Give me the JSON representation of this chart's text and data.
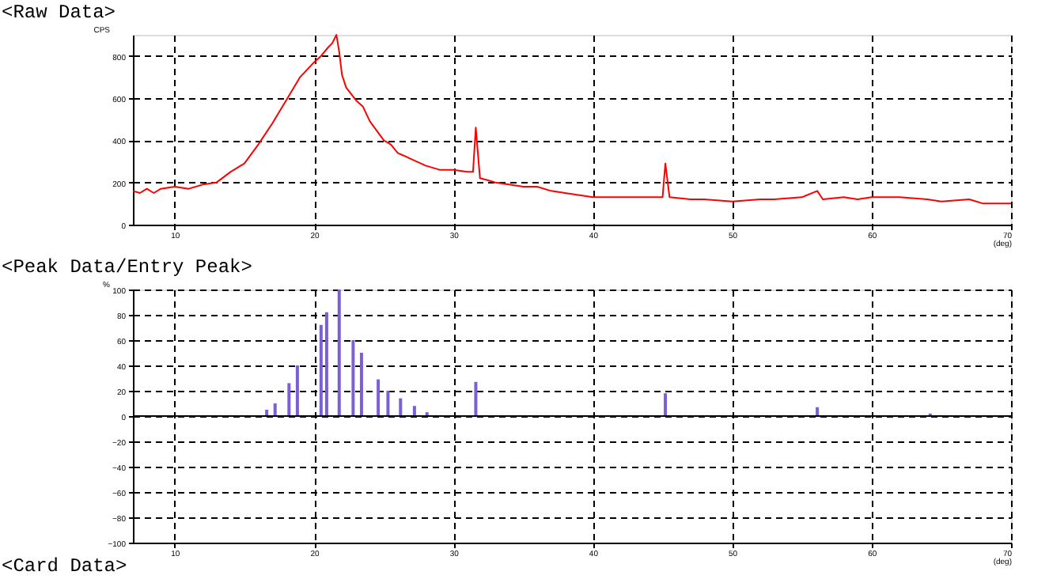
{
  "chart_data": [
    {
      "type": "line",
      "title": "<Raw Data>",
      "ylabel": "CPS",
      "xlabel": "(deg)",
      "x": [
        7,
        7.5,
        8,
        8.5,
        9,
        10,
        11,
        12,
        13,
        14,
        15,
        16,
        17,
        18,
        19,
        20,
        20.5,
        21,
        21.3,
        21.6,
        21.8,
        22,
        22.3,
        23,
        23.5,
        24,
        25,
        25.5,
        26,
        27,
        28,
        29,
        30,
        31,
        31.4,
        31.6,
        31.9,
        32.5,
        33,
        34,
        35,
        36,
        37,
        38,
        40,
        42,
        44,
        45,
        45.2,
        45.5,
        47,
        48,
        50,
        52,
        53,
        55,
        56.1,
        56.5,
        58,
        59,
        60,
        61,
        62,
        64,
        65,
        67,
        68,
        70
      ],
      "series": [
        {
          "color": "#ff0000",
          "values": [
            160,
            150,
            170,
            150,
            170,
            180,
            170,
            190,
            200,
            250,
            290,
            380,
            480,
            590,
            700,
            770,
            800,
            840,
            860,
            900,
            820,
            710,
            650,
            590,
            560,
            490,
            400,
            380,
            340,
            310,
            280,
            260,
            260,
            250,
            250,
            460,
            220,
            210,
            200,
            190,
            180,
            180,
            160,
            150,
            130,
            130,
            130,
            130,
            290,
            130,
            120,
            120,
            110,
            120,
            120,
            130,
            160,
            120,
            130,
            120,
            130,
            130,
            130,
            120,
            110,
            120,
            100,
            100
          ]
        }
      ],
      "xlim": [
        7,
        70
      ],
      "xticks": [
        10,
        20,
        30,
        40,
        50,
        60,
        70
      ],
      "ylim": [
        0,
        900
      ],
      "yticks": [
        0,
        200,
        400,
        600,
        800
      ],
      "grid": true,
      "marker": "none",
      "line_style": "solid"
    },
    {
      "type": "bar",
      "title": "<Peak Data/Entry Peak>",
      "ylabel": "%",
      "xlabel": "(deg)",
      "annotations": [
        "<Card Data>"
      ],
      "x": [
        16.6,
        17.2,
        18.2,
        18.8,
        20.5,
        20.9,
        21.8,
        22.8,
        23.4,
        24.6,
        25.3,
        26.2,
        27.2,
        28.1,
        31.6,
        45.2,
        56.1,
        64.2
      ],
      "series": [
        {
          "color": "#7b5fd6",
          "values": [
            5,
            10,
            26,
            40,
            72,
            82,
            100,
            60,
            50,
            29,
            20,
            14,
            8,
            3,
            27,
            18,
            7,
            2
          ]
        }
      ],
      "xlim": [
        7,
        70
      ],
      "xticks": [
        10,
        20,
        30,
        40,
        50,
        60,
        70
      ],
      "ylim": [
        -100,
        100
      ],
      "yticks": [
        -100,
        -80,
        -60,
        -40,
        -20,
        0,
        20,
        40,
        60,
        80,
        100
      ],
      "ref_lines": [
        {
          "axis": "y",
          "value": 0,
          "color": "#000000",
          "line_style": "solid"
        }
      ],
      "grid": true
    }
  ]
}
